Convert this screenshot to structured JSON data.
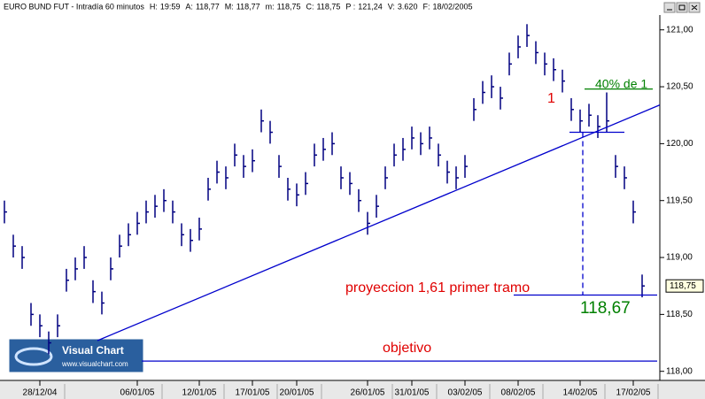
{
  "chart_data": {
    "type": "ohlc",
    "title": "EURO BUND FUT - Intradía 60 minutos",
    "header_fields": [
      {
        "label": "H:",
        "value": "19:59"
      },
      {
        "label": "A:",
        "value": "118,77"
      },
      {
        "label": "M:",
        "value": "118,77"
      },
      {
        "label": "m:",
        "value": "118,75"
      },
      {
        "label": "C:",
        "value": "118,75"
      },
      {
        "label": "P :",
        "value": "121,24"
      },
      {
        "label": "V:",
        "value": "3.620"
      },
      {
        "label": "F:",
        "value": "18/02/2005"
      }
    ],
    "color": "#000080",
    "close": [
      119.4,
      119.1,
      119.0,
      118.5,
      118.4,
      118.25,
      118.4,
      118.8,
      118.9,
      119.0,
      118.7,
      118.6,
      118.9,
      119.1,
      119.2,
      119.3,
      119.4,
      119.45,
      119.5,
      119.4,
      119.2,
      119.15,
      119.25,
      119.6,
      119.75,
      119.7,
      119.9,
      119.8,
      119.85,
      120.2,
      120.1,
      119.8,
      119.6,
      119.55,
      119.65,
      119.9,
      119.95,
      120.0,
      119.7,
      119.65,
      119.5,
      119.3,
      119.45,
      119.7,
      119.9,
      119.95,
      120.05,
      120.0,
      120.05,
      119.9,
      119.75,
      119.7,
      119.8,
      120.3,
      120.45,
      120.5,
      120.4,
      120.7,
      120.85,
      120.95,
      120.8,
      120.7,
      120.65,
      120.55,
      120.3,
      120.2,
      120.25,
      120.15,
      120.2,
      119.8,
      119.7,
      119.4,
      118.75
    ],
    "high": [
      119.5,
      119.2,
      119.1,
      118.6,
      118.5,
      118.35,
      118.5,
      118.9,
      119.0,
      119.1,
      118.8,
      118.7,
      119.0,
      119.2,
      119.3,
      119.4,
      119.5,
      119.55,
      119.6,
      119.5,
      119.3,
      119.25,
      119.35,
      119.7,
      119.85,
      119.8,
      120.0,
      119.9,
      119.95,
      120.3,
      120.2,
      119.9,
      119.7,
      119.65,
      119.75,
      120.0,
      120.05,
      120.1,
      119.8,
      119.75,
      119.6,
      119.4,
      119.55,
      119.8,
      120.0,
      120.05,
      120.15,
      120.1,
      120.15,
      120.0,
      119.85,
      119.8,
      119.9,
      120.4,
      120.55,
      120.6,
      120.5,
      120.8,
      120.95,
      121.05,
      120.9,
      120.8,
      120.75,
      120.65,
      120.4,
      120.3,
      120.35,
      120.25,
      120.45,
      119.9,
      119.8,
      119.5,
      118.85
    ],
    "low": [
      119.3,
      119.0,
      118.9,
      118.4,
      118.3,
      118.15,
      118.3,
      118.7,
      118.8,
      118.9,
      118.6,
      118.5,
      118.8,
      119.0,
      119.1,
      119.2,
      119.3,
      119.35,
      119.4,
      119.3,
      119.1,
      119.05,
      119.15,
      119.5,
      119.65,
      119.6,
      119.8,
      119.7,
      119.75,
      120.1,
      120.0,
      119.7,
      119.5,
      119.45,
      119.55,
      119.8,
      119.85,
      119.9,
      119.6,
      119.55,
      119.4,
      119.2,
      119.35,
      119.6,
      119.8,
      119.85,
      119.95,
      119.9,
      119.95,
      119.8,
      119.65,
      119.6,
      119.7,
      120.2,
      120.35,
      120.4,
      120.3,
      120.6,
      120.75,
      120.85,
      120.7,
      120.6,
      120.55,
      120.45,
      120.2,
      120.1,
      120.15,
      120.05,
      120.1,
      119.7,
      119.6,
      119.3,
      118.65
    ],
    "xticks": [
      {
        "value": 4,
        "label": "28/12/04"
      },
      {
        "value": 15,
        "label": "06/01/05"
      },
      {
        "value": 22,
        "label": "12/01/05"
      },
      {
        "value": 28,
        "label": "17/01/05"
      },
      {
        "value": 33,
        "label": "20/01/05"
      },
      {
        "value": 41,
        "label": "26/01/05"
      },
      {
        "value": 46,
        "label": "31/01/05"
      },
      {
        "value": 52,
        "label": "03/02/05"
      },
      {
        "value": 58,
        "label": "08/02/05"
      },
      {
        "value": 65,
        "label": "14/02/05"
      },
      {
        "value": 71,
        "label": "17/02/05"
      }
    ],
    "ylim": [
      117.92,
      121.13
    ],
    "yticks": [
      {
        "value": 118,
        "label": "118,00"
      },
      {
        "value": 118.5,
        "label": "118,50"
      },
      {
        "value": 119,
        "label": "119,00"
      },
      {
        "value": 119.5,
        "label": "119,50"
      },
      {
        "value": 120,
        "label": "120,00"
      },
      {
        "value": 120.5,
        "label": "120,50"
      },
      {
        "value": 121,
        "label": "121,00"
      }
    ],
    "last_price": {
      "value": 118.75,
      "label": "118,75"
    },
    "lines": [
      {
        "x": [
          10.5,
          74
        ],
        "y": [
          118.27,
          120.34
        ],
        "color": "#0000cc",
        "dash": false
      },
      {
        "x": [
          57.5,
          73.7
        ],
        "y": [
          118.67,
          118.67
        ],
        "color": "#0000cc",
        "dash": false
      },
      {
        "x": [
          15.5,
          73.7
        ],
        "y": [
          118.09,
          118.09
        ],
        "color": "#0000cc",
        "dash": false
      },
      {
        "x": [
          65.5,
          73.2
        ],
        "y": [
          120.48,
          120.48
        ],
        "color": "#008000",
        "dash": false
      },
      {
        "x": [
          63.8,
          70
        ],
        "y": [
          120.1,
          120.1
        ],
        "color": "#0000cc",
        "dash": false
      },
      {
        "x": [
          65.3,
          65.3
        ],
        "y": [
          120.1,
          118.67
        ],
        "color": "#0000cc",
        "dash": true
      }
    ],
    "annotations": [
      {
        "text": "1",
        "color": "#e00000"
      },
      {
        "text": "40% de 1",
        "color": "#008000"
      },
      {
        "text": "proyeccion 1,61 primer tramo",
        "color": "#e00000"
      },
      {
        "text": "118,67",
        "color": "#008000"
      },
      {
        "text": "objetivo",
        "color": "#e00000"
      }
    ],
    "logo": {
      "title": "Visual Chart",
      "url": "www.visualchart.com"
    }
  }
}
